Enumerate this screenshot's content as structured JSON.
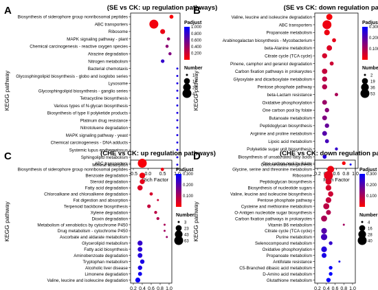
{
  "colors": {
    "low": "#ff0000",
    "high": "#0000ff",
    "axis": "#000000"
  },
  "chart_data": [
    {
      "type": "scatter",
      "letter": "A",
      "title": "(SE vs CK: up regulation pathways)",
      "xlabel": "Rich Factor",
      "ylabel": "KEGG pathway",
      "xlim": [
        -0.5,
        1.0
      ],
      "xticks": [
        "-0.5",
        "0.0",
        "0.5",
        "1.0"
      ],
      "xticks_num": [
        -0.5,
        0.0,
        0.5,
        1.0
      ],
      "legend_padjust_title": "Padjust",
      "padjust_ticks": [
        "1.000",
        "0.800",
        "0.600",
        "0.400",
        "0.200"
      ],
      "padjust_range": [
        0.0,
        1.0
      ],
      "legend_number_title": "Number",
      "number_ticks": [
        "1",
        "14",
        "27",
        "41"
      ],
      "number_range": [
        1,
        41
      ],
      "categories": [
        "Biosynthesis of siderophore group nonribosomal peptides",
        "ABC transporters",
        "Ribosome",
        "MAPK signaling pathway - plant",
        "Chemical carcinogenesis - reactive oxygen species",
        "Atrazine degradation",
        "Nitrogen metabolism",
        "Bacterial chemotaxis",
        "Glycosphingolipid biosynthesis - globo and isoglobo series",
        "Lysosome",
        "Glycosphingolipid biosynthesis - ganglio series",
        "Tetracycline biosynthesis",
        "Various types of N-glycan biosynthesis",
        "Biosynthesis of type II polyketide products",
        "Platinum drug resistance",
        "Nitrotoluene degradation",
        "MAPK signaling pathway - yeast",
        "Chemical carcinogenesis - DNA adducts",
        "Systemic lupus erythematosus",
        "Sphingolipid metabolism",
        "Mineral absorption"
      ],
      "rich_factor": [
        0.8,
        0.2,
        0.5,
        0.7,
        0.65,
        0.75,
        0.5,
        1.0,
        1.0,
        1.0,
        1.0,
        1.0,
        1.0,
        1.0,
        1.0,
        1.0,
        1.0,
        1.0,
        1.0,
        1.0,
        1.0
      ],
      "number": [
        4,
        41,
        8,
        2,
        2,
        2,
        3,
        1,
        1,
        1,
        1,
        1,
        1,
        1,
        1,
        1,
        1,
        1,
        1,
        1,
        1
      ],
      "padjust": [
        0.02,
        0.05,
        0.08,
        0.4,
        0.45,
        0.5,
        0.8,
        0.9,
        0.9,
        0.9,
        0.9,
        0.9,
        0.9,
        0.9,
        0.9,
        0.9,
        0.9,
        0.9,
        0.9,
        0.9,
        0.9
      ]
    },
    {
      "type": "scatter",
      "letter": "B",
      "title": "(SE vs CK: down regulation pathways)",
      "xlabel": "Rich Factor",
      "ylabel": "KEGG pathway",
      "xlim": [
        0.2,
        1.0
      ],
      "xticks": [
        "0.2",
        "0.4",
        "0.6",
        "0.8",
        "1.0"
      ],
      "xticks_num": [
        0.2,
        0.4,
        0.6,
        0.8,
        1.0
      ],
      "legend_padjust_title": "Padjust",
      "padjust_ticks": [
        "0.300",
        "0.200",
        "0.100"
      ],
      "padjust_range": [
        0.0,
        0.3
      ],
      "legend_number_title": "Number",
      "number_ticks": [
        "2",
        "19",
        "36",
        "53"
      ],
      "number_range": [
        2,
        53
      ],
      "categories": [
        "Valine, leucine and isoleucine degradation",
        "ABC transporters",
        "Propanoate metabolism",
        "Arabinogalactan biosynthesis - Mycobacterium",
        "beta-Alanine metabolism",
        "Citrate cycle (TCA cycle)",
        "Pinene, camphor and geraniol degradation",
        "Carbon fixation pathways in prokaryotes",
        "Glyoxylate and dicarboxylate metabolism",
        "Pentose phosphate pathway",
        "beta-Lactam resistance",
        "Oxidative phosphorylation",
        "One carbon pool by folate",
        "Butanoate metabolism",
        "Peptidoglycan biosynthesis",
        "Arginine and proline metabolism",
        "Lipoic acid metabolism",
        "Polyketide sugar unit biosynthesis",
        "Biosynthesis of unsaturated fatty acids",
        "Glucosinolate biosynthesis"
      ],
      "rich_factor": [
        0.45,
        0.4,
        0.4,
        0.55,
        0.45,
        0.35,
        0.5,
        0.35,
        0.35,
        0.35,
        0.6,
        0.35,
        0.4,
        0.35,
        0.4,
        0.35,
        0.4,
        0.6,
        0.35,
        0.9
      ],
      "number": [
        20,
        53,
        16,
        6,
        14,
        12,
        6,
        14,
        12,
        12,
        4,
        10,
        8,
        10,
        8,
        10,
        6,
        3,
        6,
        2
      ],
      "padjust": [
        0.01,
        0.02,
        0.02,
        0.03,
        0.04,
        0.05,
        0.06,
        0.07,
        0.08,
        0.09,
        0.1,
        0.12,
        0.14,
        0.15,
        0.18,
        0.2,
        0.22,
        0.24,
        0.26,
        0.29
      ]
    },
    {
      "type": "scatter",
      "letter": "C",
      "title": "(CHE vs CK: up regulation pathways)",
      "xlabel": "Rich Factor",
      "ylabel": "KEGG pathway",
      "xlim": [
        0.2,
        1.0
      ],
      "xticks": [
        "0.2",
        "0.4",
        "0.6",
        "0.8",
        "1.0"
      ],
      "xticks_num": [
        0.2,
        0.4,
        0.6,
        0.8,
        1.0
      ],
      "legend_padjust_title": "Padjust",
      "padjust_ticks": [
        "0.300",
        "0.200",
        "0.100"
      ],
      "padjust_range": [
        0.0,
        0.3
      ],
      "legend_number_title": "Number",
      "number_ticks": [
        "3",
        "23",
        "43",
        "63"
      ],
      "number_range": [
        3,
        63
      ],
      "categories": [
        "ABC transporters",
        "Biosynthesis of siderophore group nonribosomal peptides",
        "Benzoate degradation",
        "Steroid degradation",
        "Fatty acid degradation",
        "Chloroalkane and chloroalkene degradation",
        "Fat digestion and absorption",
        "Terpenoid backbone biosynthesis",
        "Xylene degradation",
        "Dioxin degradation",
        "Metabolism of xenobiotics by cytochrome P450",
        "Drug metabolism - cytochrome P450",
        "Ascorbate and aldarate metabolism",
        "Glycerolipid metabolism",
        "Fatty acid biosynthesis",
        "Aminobenzoate degradation",
        "Tryptophan metabolism",
        "Alcoholic liver disease",
        "Limonene degradation",
        "Valine, leucine and isoleucine degradation"
      ],
      "rich_factor": [
        0.4,
        0.85,
        0.4,
        0.4,
        0.35,
        0.6,
        0.75,
        0.55,
        0.7,
        0.75,
        0.9,
        0.9,
        0.95,
        0.35,
        0.35,
        0.35,
        0.4,
        0.35,
        0.35,
        0.3
      ],
      "number": [
        63,
        5,
        20,
        14,
        16,
        5,
        3,
        6,
        4,
        4,
        3,
        3,
        3,
        14,
        12,
        12,
        10,
        10,
        8,
        14
      ],
      "padjust": [
        0.01,
        0.02,
        0.02,
        0.03,
        0.04,
        0.05,
        0.06,
        0.07,
        0.08,
        0.09,
        0.1,
        0.11,
        0.12,
        0.24,
        0.25,
        0.26,
        0.27,
        0.27,
        0.28,
        0.29
      ]
    },
    {
      "type": "scatter",
      "letter": "D",
      "title": "(CHE vs CK: down regulation pathways)",
      "xlabel": "Rich Factor",
      "ylabel": "KEGG pathway",
      "xlim": [
        0.2,
        1.0
      ],
      "xticks": [
        "0.2",
        "0.4",
        "0.6",
        "0.8",
        "1.0"
      ],
      "xticks_num": [
        0.2,
        0.4,
        0.6,
        0.8,
        1.0
      ],
      "legend_padjust_title": "Padjust",
      "padjust_ticks": [
        "0.300",
        "0.200",
        "0.100"
      ],
      "padjust_range": [
        0.0,
        0.3
      ],
      "legend_number_title": "Number",
      "number_ticks": [
        "4",
        "16",
        "28",
        "40"
      ],
      "number_range": [
        4,
        40
      ],
      "categories": [
        "One carbon pool by folate",
        "Glycine, serine and threonine metabolism",
        "Ribosome",
        "Peptidoglycan biosynthesis",
        "Biosynthesis of nucleotide sugars",
        "Valine, leucine and isoleucine biosynthesis",
        "Pentose phosphate pathway",
        "Cysteine and methionine metabolism",
        "O-Antigen nucleotide sugar biosynthesis",
        "Carbon fixation pathways in prokaryotes",
        "Vitamin B6 metabolism",
        "Citrate cycle (TCA cycle)",
        "Purine metabolism",
        "Selenocompound metabolism",
        "Oxidative phosphorylation",
        "Propanoate metabolism",
        "Antifolate resistance",
        "C5-Branched dibasic acid metabolism",
        "D-Amino acid metabolism",
        "Glutathione metabolism"
      ],
      "rich_factor": [
        0.8,
        0.5,
        0.45,
        0.45,
        0.45,
        0.5,
        0.45,
        0.4,
        0.45,
        0.35,
        0.8,
        0.35,
        0.35,
        0.5,
        0.35,
        0.35,
        0.7,
        0.5,
        0.5,
        0.45
      ],
      "number": [
        6,
        22,
        40,
        16,
        14,
        12,
        14,
        16,
        10,
        16,
        4,
        14,
        18,
        6,
        14,
        10,
        4,
        6,
        6,
        8
      ],
      "padjust": [
        0.01,
        0.02,
        0.03,
        0.04,
        0.05,
        0.06,
        0.07,
        0.08,
        0.09,
        0.1,
        0.11,
        0.2,
        0.22,
        0.24,
        0.26,
        0.27,
        0.28,
        0.29,
        0.3,
        0.3
      ]
    }
  ]
}
